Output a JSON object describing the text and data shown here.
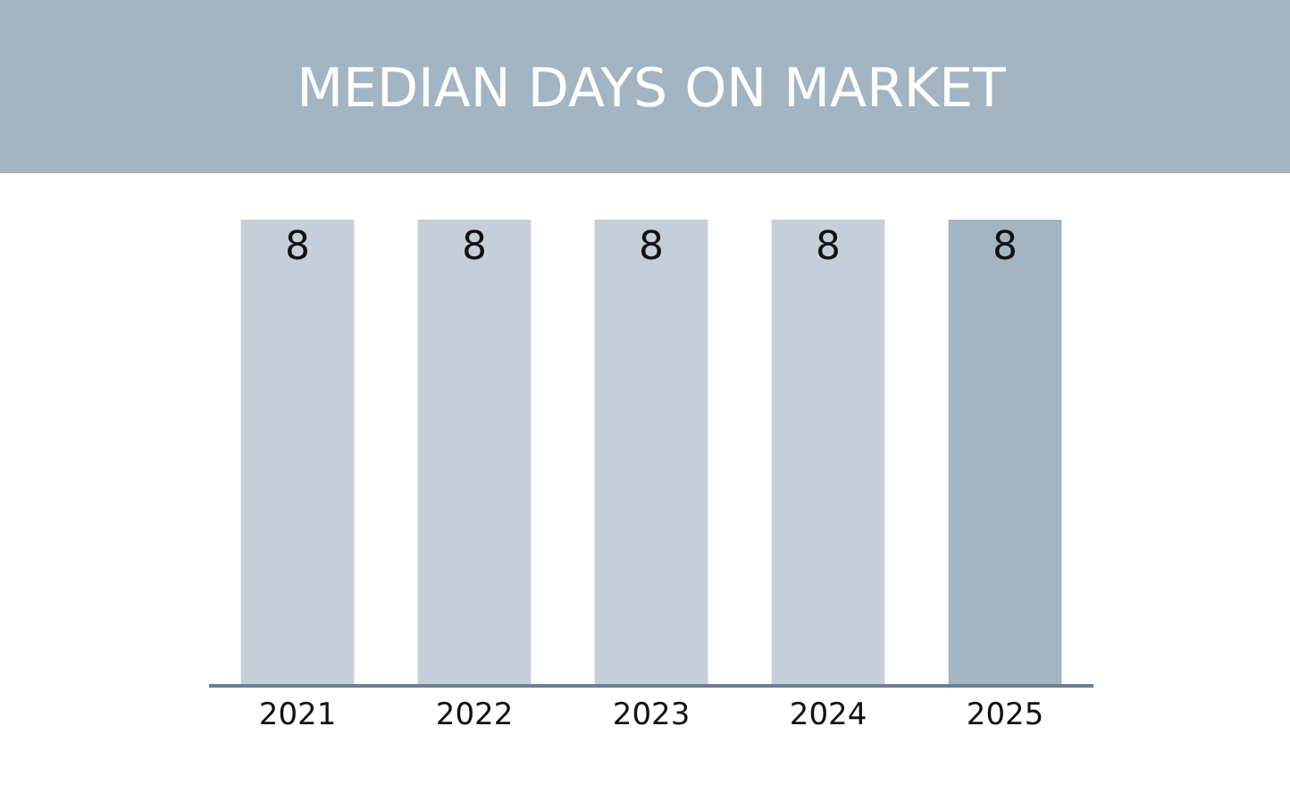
{
  "chart_data": {
    "type": "bar",
    "title": "MEDIAN DAYS ON MARKET",
    "categories": [
      "2021",
      "2022",
      "2023",
      "2024",
      "2025"
    ],
    "values": [
      8,
      8,
      8,
      8,
      8
    ],
    "colors": [
      "#c5ced9",
      "#c5ced9",
      "#c5ced9",
      "#c5ced9",
      "#a3b4c2"
    ],
    "data_labels": true
  }
}
